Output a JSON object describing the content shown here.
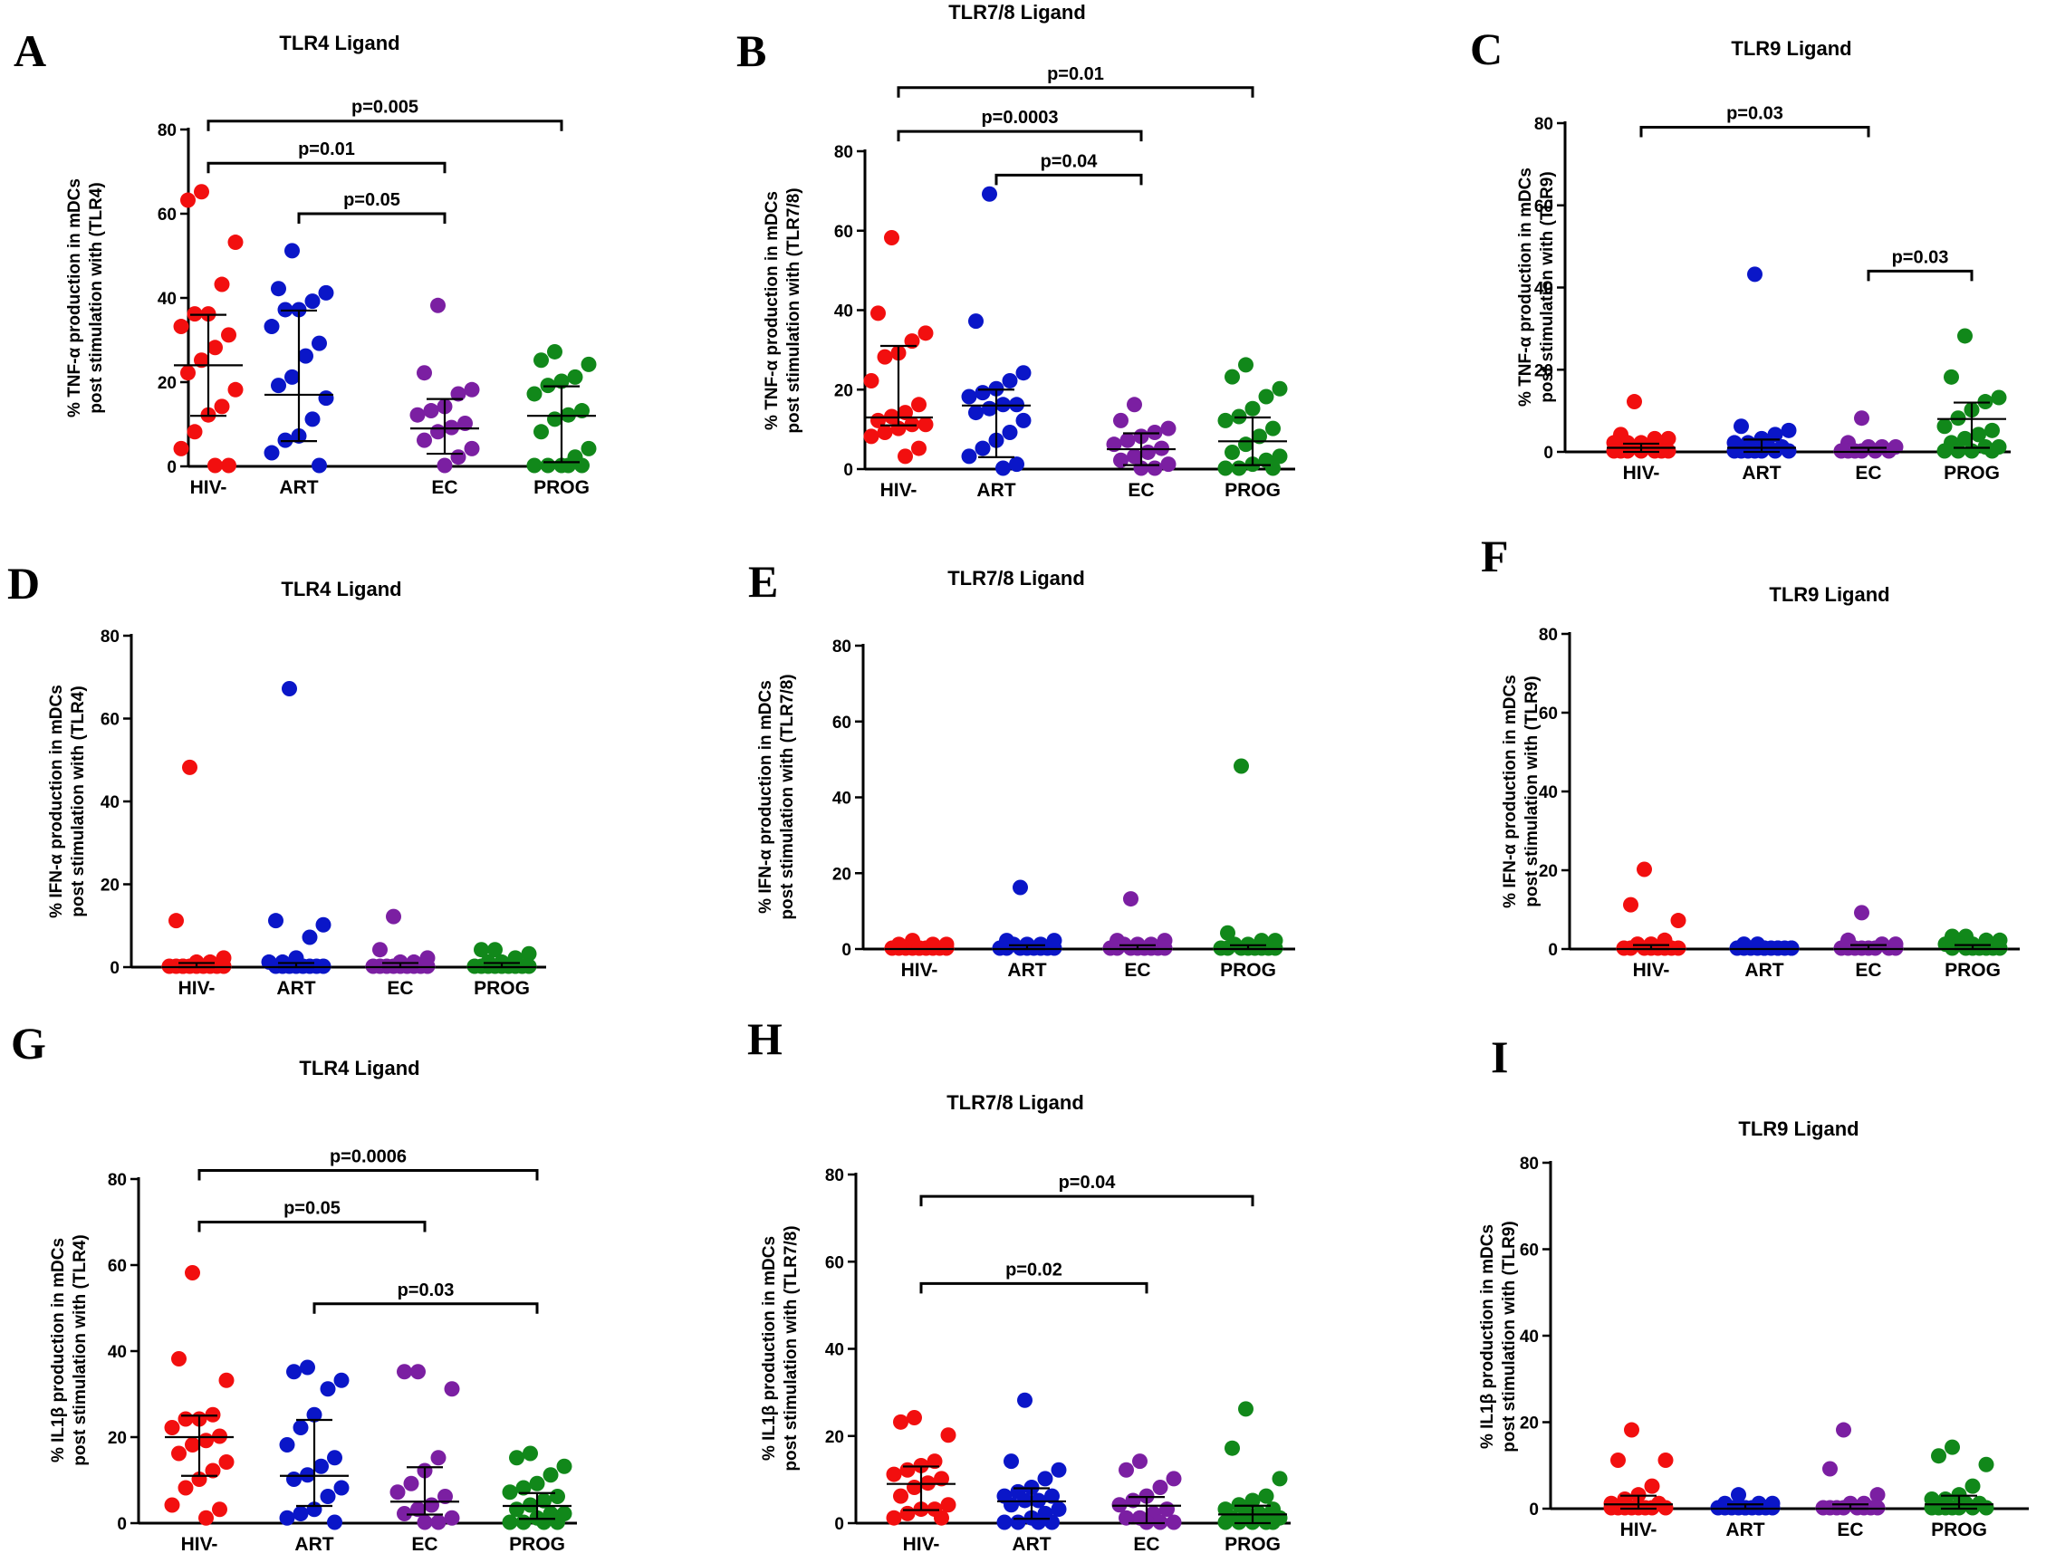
{
  "figure": {
    "colors": {
      "HIV-": "#f20f0f",
      "ART": "#0a16c8",
      "EC": "#7b1fa2",
      "PROG": "#11881a"
    }
  },
  "chart_data": [
    {
      "type": "scatter",
      "panel": "A",
      "title": "TLR4 Ligand",
      "ylabel": [
        "% TNF-α production in mDCs",
        "post stimulation with (TLR4)"
      ],
      "categories": [
        "HIV-",
        "ART",
        "EC",
        "PROG"
      ],
      "ylim": [
        0,
        80
      ],
      "yticks": [
        "0",
        "20",
        "40",
        "60",
        "80"
      ],
      "series": [
        {
          "name": "HIV-",
          "values": [
            65,
            63,
            53,
            43,
            36,
            36,
            33,
            31,
            28,
            25,
            22,
            18,
            14,
            12,
            8,
            4,
            0,
            0
          ],
          "median": 24,
          "q1": 12,
          "q3": 36
        },
        {
          "name": "ART",
          "values": [
            51,
            42,
            41,
            39,
            37,
            37,
            33,
            29,
            26,
            21,
            19,
            16,
            11,
            7,
            6,
            3,
            0
          ],
          "median": 17,
          "q1": 6,
          "q3": 37
        },
        {
          "name": "EC",
          "values": [
            38,
            22,
            18,
            17,
            14,
            13,
            12,
            10,
            9,
            8,
            6,
            4,
            2,
            0
          ],
          "median": 9,
          "q1": 3,
          "q3": 16
        },
        {
          "name": "PROG",
          "values": [
            27,
            25,
            24,
            21,
            20,
            19,
            17,
            13,
            12,
            11,
            8,
            4,
            2,
            0,
            0,
            0,
            0,
            0
          ],
          "median": 12,
          "q1": 1,
          "q3": 19
        }
      ],
      "brackets": [
        {
          "from": 0,
          "to": 3,
          "y": 82,
          "label": "p=0.005"
        },
        {
          "from": 0,
          "to": 2,
          "y": 72,
          "label": "p=0.01"
        },
        {
          "from": 1,
          "to": 2,
          "y": 60,
          "label": "p=0.05"
        }
      ]
    },
    {
      "type": "scatter",
      "panel": "B",
      "title": "TLR7/8 Ligand",
      "ylabel": [
        "% TNF-α production in mDCs",
        "post stimulation with (TLR7/8)"
      ],
      "categories": [
        "HIV-",
        "ART",
        "EC",
        "PROG"
      ],
      "ylim": [
        0,
        80
      ],
      "yticks": [
        "0",
        "20",
        "40",
        "60",
        "80"
      ],
      "series": [
        {
          "name": "HIV-",
          "values": [
            58,
            39,
            34,
            32,
            29,
            28,
            22,
            16,
            14,
            13,
            12,
            11,
            11,
            10,
            9,
            8,
            5,
            3
          ],
          "median": 13,
          "q1": 11,
          "q3": 31
        },
        {
          "name": "ART",
          "values": [
            69,
            37,
            24,
            22,
            20,
            19,
            18,
            16,
            16,
            15,
            14,
            12,
            9,
            7,
            5,
            3,
            1,
            0
          ],
          "median": 16,
          "q1": 3,
          "q3": 20
        },
        {
          "name": "EC",
          "values": [
            16,
            12,
            10,
            9,
            8,
            7,
            6,
            5,
            4,
            3,
            2,
            1,
            0,
            0
          ],
          "median": 5,
          "q1": 1,
          "q3": 9
        },
        {
          "name": "PROG",
          "values": [
            26,
            23,
            20,
            18,
            15,
            13,
            12,
            10,
            8,
            6,
            4,
            3,
            2,
            1,
            0,
            0,
            0
          ],
          "median": 7,
          "q1": 1,
          "q3": 13
        }
      ],
      "brackets": [
        {
          "from": 0,
          "to": 3,
          "y": 96,
          "label": "p=0.01"
        },
        {
          "from": 0,
          "to": 2,
          "y": 85,
          "label": "p=0.0003"
        },
        {
          "from": 1,
          "to": 2,
          "y": 74,
          "label": "p=0.04"
        }
      ]
    },
    {
      "type": "scatter",
      "panel": "C",
      "title": "TLR9 Ligand",
      "ylabel": [
        "% TNF-α production in mDCs",
        "post stimulation with (TLR9)"
      ],
      "categories": [
        "HIV-",
        "ART",
        "EC",
        "PROG"
      ],
      "ylim": [
        0,
        80
      ],
      "yticks": [
        "0",
        "20",
        "40",
        "60",
        "80"
      ],
      "series": [
        {
          "name": "HIV-",
          "values": [
            12,
            4,
            3,
            3,
            2,
            2,
            2,
            1,
            1,
            1,
            0,
            0,
            0,
            0,
            0,
            0,
            0
          ],
          "median": 1,
          "q1": 0,
          "q3": 2
        },
        {
          "name": "ART",
          "values": [
            43,
            6,
            5,
            4,
            3,
            2,
            2,
            1,
            1,
            0,
            0,
            0,
            0,
            0,
            0,
            0
          ],
          "median": 1,
          "q1": 0,
          "q3": 3
        },
        {
          "name": "EC",
          "values": [
            8,
            2,
            1,
            1,
            1,
            0,
            0,
            0,
            0,
            0,
            0
          ],
          "median": 0,
          "q1": 0,
          "q3": 1
        },
        {
          "name": "PROG",
          "values": [
            28,
            18,
            13,
            12,
            10,
            8,
            6,
            5,
            4,
            3,
            2,
            1,
            1,
            0,
            0,
            0,
            0
          ],
          "median": 8,
          "q1": 1,
          "q3": 12
        }
      ],
      "brackets": [
        {
          "from": 0,
          "to": 2,
          "y": 79,
          "label": "p=0.03"
        },
        {
          "from": 2,
          "to": 3,
          "y": 44,
          "label": "p=0.03"
        }
      ]
    },
    {
      "type": "scatter",
      "panel": "D",
      "title": "TLR4 Ligand",
      "ylabel": [
        "% IFN-α production in mDCs",
        "post stimulation with (TLR4)"
      ],
      "categories": [
        "HIV-",
        "ART",
        "EC",
        "PROG"
      ],
      "ylim": [
        0,
        80
      ],
      "yticks": [
        "0",
        "20",
        "40",
        "60",
        "80"
      ],
      "series": [
        {
          "name": "HIV-",
          "values": [
            48,
            11,
            2,
            1,
            1,
            0,
            0,
            0,
            0,
            0,
            0,
            0,
            0,
            0,
            0
          ],
          "median": 0,
          "q1": 0,
          "q3": 1
        },
        {
          "name": "ART",
          "values": [
            67,
            11,
            10,
            7,
            2,
            1,
            1,
            0,
            0,
            0,
            0,
            0,
            0,
            0,
            0
          ],
          "median": 0,
          "q1": 0,
          "q3": 1
        },
        {
          "name": "EC",
          "values": [
            12,
            4,
            2,
            1,
            1,
            0,
            0,
            0,
            0,
            0,
            0,
            0,
            0,
            0
          ],
          "median": 0,
          "q1": 0,
          "q3": 1
        },
        {
          "name": "PROG",
          "values": [
            4,
            4,
            3,
            2,
            1,
            1,
            0,
            0,
            0,
            0,
            0,
            0,
            0,
            0,
            0
          ],
          "median": 0,
          "q1": 0,
          "q3": 1
        }
      ],
      "brackets": []
    },
    {
      "type": "scatter",
      "panel": "E",
      "title": "TLR7/8 Ligand",
      "ylabel": [
        "% IFN-α production in mDCs",
        "post stimulation with (TLR7/8)"
      ],
      "categories": [
        "HIV-",
        "ART",
        "EC",
        "PROG"
      ],
      "ylim": [
        0,
        80
      ],
      "yticks": [
        "0",
        "20",
        "40",
        "60",
        "80"
      ],
      "series": [
        {
          "name": "HIV-",
          "values": [
            2,
            1,
            1,
            1,
            0,
            0,
            0,
            0,
            0,
            0,
            0,
            0,
            0,
            0
          ],
          "median": 0,
          "q1": 0,
          "q3": 0
        },
        {
          "name": "ART",
          "values": [
            16,
            2,
            2,
            1,
            1,
            1,
            0,
            0,
            0,
            0,
            0,
            0,
            0,
            0
          ],
          "median": 0,
          "q1": 0,
          "q3": 1
        },
        {
          "name": "EC",
          "values": [
            13,
            2,
            2,
            1,
            1,
            1,
            0,
            0,
            0,
            0,
            0,
            0,
            0,
            0
          ],
          "median": 0,
          "q1": 0,
          "q3": 1
        },
        {
          "name": "PROG",
          "values": [
            48,
            4,
            2,
            2,
            1,
            1,
            0,
            0,
            0,
            0,
            0,
            0,
            0,
            0
          ],
          "median": 0,
          "q1": 0,
          "q3": 1
        }
      ],
      "brackets": []
    },
    {
      "type": "scatter",
      "panel": "F",
      "title": "TLR9 Ligand",
      "ylabel": [
        "% IFN-α production in mDCs",
        "post stimulation with (TLR9)"
      ],
      "categories": [
        "HIV-",
        "ART",
        "EC",
        "PROG"
      ],
      "ylim": [
        0,
        80
      ],
      "yticks": [
        "0",
        "20",
        "40",
        "60",
        "80"
      ],
      "series": [
        {
          "name": "HIV-",
          "values": [
            20,
            11,
            7,
            2,
            1,
            1,
            0,
            0,
            0,
            0,
            0,
            0,
            0,
            0
          ],
          "median": 0,
          "q1": 0,
          "q3": 1
        },
        {
          "name": "ART",
          "values": [
            1,
            1,
            0,
            0,
            0,
            0,
            0,
            0,
            0,
            0,
            0,
            0,
            0,
            0
          ],
          "median": 0,
          "q1": 0,
          "q3": 0
        },
        {
          "name": "EC",
          "values": [
            9,
            2,
            1,
            1,
            0,
            0,
            0,
            0,
            0,
            0,
            0,
            0
          ],
          "median": 0,
          "q1": 0,
          "q3": 1
        },
        {
          "name": "PROG",
          "values": [
            3,
            3,
            2,
            2,
            1,
            1,
            1,
            0,
            0,
            0,
            0,
            0,
            0,
            0
          ],
          "median": 0,
          "q1": 0,
          "q3": 1
        }
      ],
      "brackets": []
    },
    {
      "type": "scatter",
      "panel": "G",
      "title": "TLR4 Ligand",
      "ylabel": [
        "% IL1β production in mDCs",
        "post stimulation with (TLR4)"
      ],
      "categories": [
        "HIV-",
        "ART",
        "EC",
        "PROG"
      ],
      "ylim": [
        0,
        80
      ],
      "yticks": [
        "0",
        "20",
        "40",
        "60",
        "80"
      ],
      "series": [
        {
          "name": "HIV-",
          "values": [
            58,
            38,
            33,
            25,
            24,
            24,
            22,
            20,
            19,
            18,
            16,
            14,
            12,
            10,
            8,
            4,
            3,
            1
          ],
          "median": 20,
          "q1": 11,
          "q3": 25
        },
        {
          "name": "ART",
          "values": [
            36,
            35,
            33,
            31,
            25,
            22,
            18,
            15,
            13,
            11,
            10,
            8,
            6,
            3,
            2,
            1,
            0
          ],
          "median": 11,
          "q1": 4,
          "q3": 24
        },
        {
          "name": "EC",
          "values": [
            35,
            35,
            31,
            15,
            12,
            9,
            7,
            6,
            4,
            3,
            2,
            1,
            0,
            0
          ],
          "median": 5,
          "q1": 2,
          "q3": 13
        },
        {
          "name": "PROG",
          "values": [
            16,
            15,
            13,
            11,
            9,
            8,
            7,
            6,
            5,
            4,
            3,
            2,
            2,
            1,
            0,
            0,
            0,
            0
          ],
          "median": 4,
          "q1": 1,
          "q3": 7
        }
      ],
      "brackets": [
        {
          "from": 0,
          "to": 3,
          "y": 82,
          "label": "p=0.0006"
        },
        {
          "from": 0,
          "to": 2,
          "y": 70,
          "label": "p=0.05"
        },
        {
          "from": 1,
          "to": 3,
          "y": 51,
          "label": "p=0.03"
        }
      ]
    },
    {
      "type": "scatter",
      "panel": "H",
      "title": "TLR7/8 Ligand",
      "ylabel": [
        "% IL1β production in mDCs",
        "post stimulation with (TLR7/8)"
      ],
      "categories": [
        "HIV-",
        "ART",
        "EC",
        "PROG"
      ],
      "ylim": [
        0,
        80
      ],
      "yticks": [
        "0",
        "20",
        "40",
        "60",
        "80"
      ],
      "series": [
        {
          "name": "HIV-",
          "values": [
            24,
            23,
            20,
            14,
            13,
            12,
            11,
            10,
            9,
            8,
            6,
            4,
            3,
            3,
            2,
            1,
            1
          ],
          "median": 9,
          "q1": 3,
          "q3": 13
        },
        {
          "name": "ART",
          "values": [
            28,
            14,
            12,
            10,
            8,
            7,
            6,
            6,
            5,
            5,
            4,
            3,
            2,
            1,
            0,
            0,
            0,
            0
          ],
          "median": 5,
          "q1": 1,
          "q3": 8
        },
        {
          "name": "EC",
          "values": [
            14,
            12,
            10,
            8,
            6,
            5,
            4,
            3,
            2,
            1,
            1,
            0,
            0,
            0
          ],
          "median": 4,
          "q1": 0,
          "q3": 6
        },
        {
          "name": "PROG",
          "values": [
            26,
            17,
            10,
            6,
            5,
            4,
            3,
            3,
            2,
            2,
            1,
            1,
            0,
            0,
            0,
            0,
            0
          ],
          "median": 2,
          "q1": 0,
          "q3": 4
        }
      ],
      "brackets": [
        {
          "from": 0,
          "to": 3,
          "y": 75,
          "label": "p=0.04"
        },
        {
          "from": 0,
          "to": 2,
          "y": 55,
          "label": "p=0.02"
        }
      ]
    },
    {
      "type": "scatter",
      "panel": "I",
      "title": "TLR9 Ligand",
      "ylabel": [
        "% IL1β production in mDCs",
        "post stimulation with (TLR9)"
      ],
      "categories": [
        "HIV-",
        "ART",
        "EC",
        "PROG"
      ],
      "ylim": [
        0,
        80
      ],
      "yticks": [
        "0",
        "20",
        "40",
        "60",
        "80"
      ],
      "series": [
        {
          "name": "HIV-",
          "values": [
            18,
            11,
            11,
            5,
            3,
            2,
            1,
            1,
            0,
            0,
            0,
            0,
            0,
            0,
            0,
            0
          ],
          "median": 1,
          "q1": 0,
          "q3": 3
        },
        {
          "name": "ART",
          "values": [
            3,
            1,
            1,
            1,
            0,
            0,
            0,
            0,
            0,
            0,
            0,
            0,
            0,
            0
          ],
          "median": 0,
          "q1": 0,
          "q3": 1
        },
        {
          "name": "EC",
          "values": [
            18,
            9,
            3,
            1,
            1,
            0,
            0,
            0,
            0,
            0,
            0,
            0,
            0
          ],
          "median": 0,
          "q1": 0,
          "q3": 1
        },
        {
          "name": "PROG",
          "values": [
            14,
            12,
            10,
            5,
            3,
            2,
            2,
            1,
            1,
            0,
            0,
            0,
            0,
            0,
            0,
            0
          ],
          "median": 1,
          "q1": 0,
          "q3": 3
        }
      ],
      "brackets": []
    }
  ]
}
